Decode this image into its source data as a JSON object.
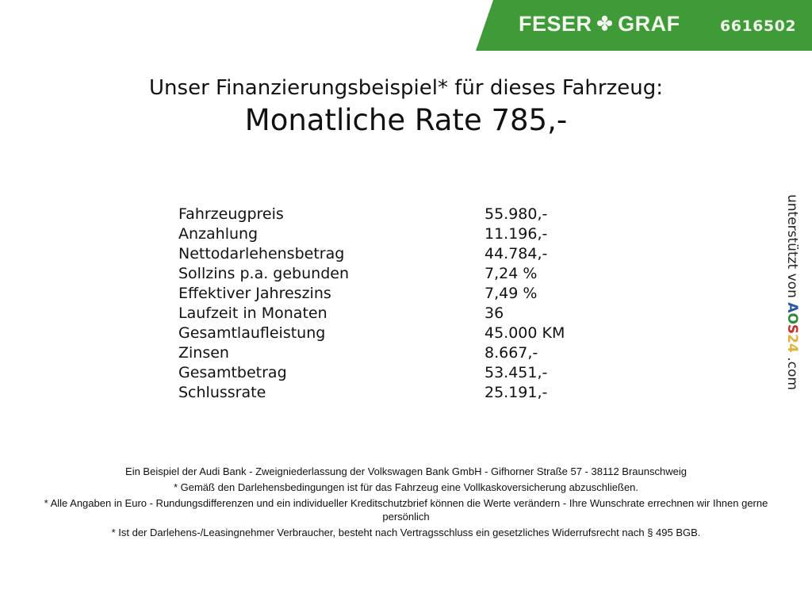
{
  "banner": {
    "brand_left": "FESER",
    "brand_right": "GRAF",
    "logo_icon": "clover-icon",
    "code": "6616502",
    "color": "#3f9b37"
  },
  "heading": {
    "intro": "Unser Finanzierungsbeispiel* für dieses Fahrzeug:",
    "rate": "Monatliche Rate 785,-"
  },
  "rows": [
    {
      "label": "Fahrzeugpreis",
      "value": "55.980,-"
    },
    {
      "label": "Anzahlung",
      "value": "11.196,-"
    },
    {
      "label": "Nettodarlehensbetrag",
      "value": "44.784,-"
    },
    {
      "label": "Sollzins p.a. gebunden",
      "value": "7,24 %"
    },
    {
      "label": "Effektiver Jahreszins",
      "value": "7,49 %"
    },
    {
      "label": "Laufzeit in Monaten",
      "value": "36"
    },
    {
      "label": "Gesamtlaufleistung",
      "value": "45.000 KM"
    },
    {
      "label": "Zinsen",
      "value": "8.667,-"
    },
    {
      "label": "Gesamtbetrag",
      "value": "53.451,-"
    },
    {
      "label": "Schlussrate",
      "value": "25.191,-"
    }
  ],
  "side": {
    "prefix": "unterstützt von",
    "a": "A",
    "o": "O",
    "s": "S",
    "n2": "2",
    "n4": "4",
    "suffix": ".com"
  },
  "footer": [
    "Ein Beispiel der Audi Bank - Zweigniederlassung der Volkswagen Bank GmbH - Gifhorner Straße 57 - 38112 Braunschweig",
    "* Gemäß den Darlehensbedingungen ist für das Fahrzeug eine Vollkaskoversicherung abzuschließen.",
    "* Alle Angaben in Euro - Rundungsdifferenzen und ein individueller Kreditschutzbrief können die Werte verändern - Ihre Wunschrate errechnen wir Ihnen gerne persönlich",
    "* Ist der Darlehens-/Leasingnehmer Verbraucher, besteht nach Vertragsschluss ein gesetzliches Widerrufsrecht nach § 495 BGB."
  ]
}
